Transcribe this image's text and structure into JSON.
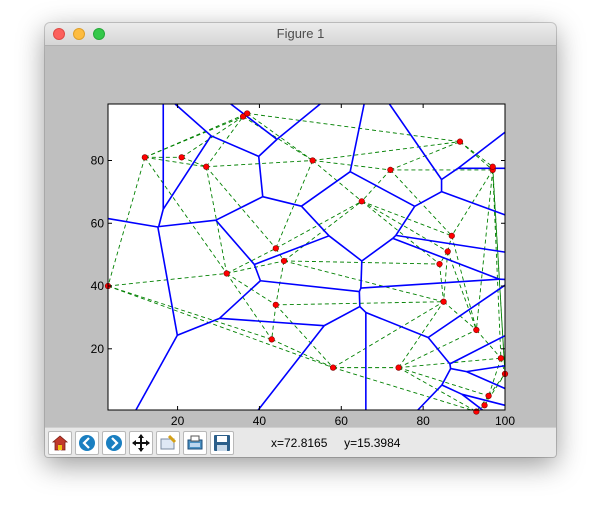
{
  "window": {
    "title": "Figure 1"
  },
  "toolbar": {
    "buttons": [
      {
        "icon": "home-icon"
      },
      {
        "icon": "back-arrow-icon"
      },
      {
        "icon": "forward-arrow-icon"
      },
      {
        "icon": "pan-icon"
      },
      {
        "icon": "zoom-rect-icon"
      },
      {
        "icon": "subplots-config-icon"
      },
      {
        "icon": "save-icon"
      }
    ],
    "cursor_x": "x=72.8165",
    "cursor_y": "y=15.3984"
  },
  "chart_data": {
    "type": "scatter",
    "description_series": [
      {
        "name": "points",
        "style": "red dots"
      },
      {
        "name": "Voronoi edges",
        "style": "solid blue lines"
      },
      {
        "name": "Delaunay triangulation",
        "style": "dashed green lines"
      }
    ],
    "xticks": [
      "20",
      "40",
      "60",
      "80",
      "100"
    ],
    "yticks": [
      "20",
      "40",
      "60",
      "80"
    ],
    "xlim": [
      3,
      100
    ],
    "ylim": [
      0.5,
      98
    ],
    "points": [
      [
        12,
        81
      ],
      [
        21,
        81
      ],
      [
        27,
        78
      ],
      [
        36,
        94
      ],
      [
        37,
        95
      ],
      [
        53,
        80
      ],
      [
        72,
        77
      ],
      [
        89,
        86
      ],
      [
        97,
        77
      ],
      [
        97,
        78
      ],
      [
        3,
        40
      ],
      [
        32,
        44
      ],
      [
        44,
        52
      ],
      [
        46,
        48
      ],
      [
        65,
        67
      ],
      [
        86,
        51
      ],
      [
        87,
        56
      ],
      [
        84,
        47
      ],
      [
        44,
        34
      ],
      [
        43,
        23
      ],
      [
        58,
        14
      ],
      [
        74,
        14
      ],
      [
        85,
        35
      ],
      [
        93,
        26
      ],
      [
        99,
        17
      ],
      [
        96,
        5
      ],
      [
        95,
        2
      ],
      [
        93,
        0
      ],
      [
        100,
        12
      ]
    ],
    "colors": {
      "points": "#ff0000",
      "voronoi": "#0000ff",
      "delaunay": "#008000",
      "figure_bg": "#bfbfbf",
      "axes_bg": "#ffffff"
    }
  }
}
